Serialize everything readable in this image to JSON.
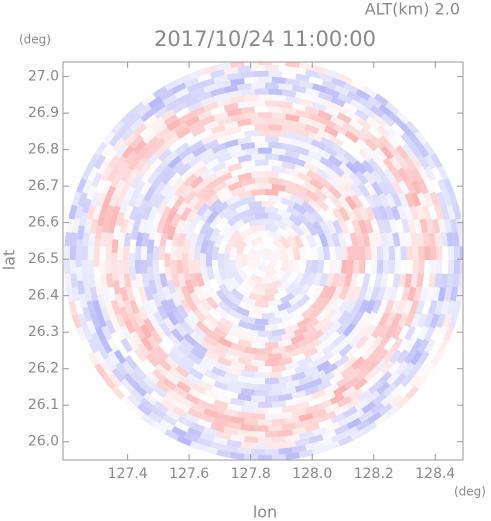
{
  "chart_data": {
    "type": "radar-ppi",
    "title": "2017/10/24 11:00:00",
    "subtitle": "ALT(km) 2.0",
    "xlabel": "lon",
    "ylabel": "lat",
    "x_unit": "(deg)",
    "y_unit": "(deg)",
    "xlim": [
      127.19,
      128.49
    ],
    "ylim": [
      25.95,
      27.04
    ],
    "xticks": [
      127.4,
      127.6,
      127.8,
      {
        "value": 128.0,
        "label": "128.0"
      },
      128.2,
      128.4
    ],
    "yticks": [
      {
        "value": 26.0,
        "label": "26.0"
      },
      26.1,
      26.2,
      26.3,
      26.4,
      26.5,
      26.6,
      26.7,
      26.8,
      26.9,
      {
        "value": 27.0,
        "label": "27.0"
      }
    ]
  }
}
